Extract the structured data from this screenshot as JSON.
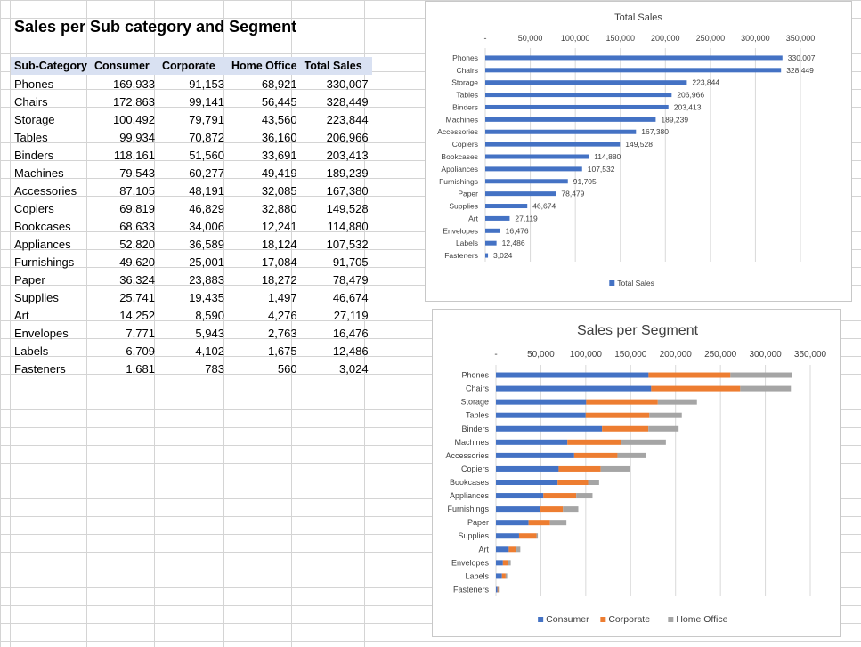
{
  "sheet": {
    "title": "Sales per Sub category and Segment",
    "headers": [
      "Sub-Category",
      "Consumer",
      "Corporate",
      "Home Office",
      "Total Sales"
    ],
    "rows": [
      [
        "Phones",
        "169,933",
        "91,153",
        "68,921",
        "330,007"
      ],
      [
        "Chairs",
        "172,863",
        "99,141",
        "56,445",
        "328,449"
      ],
      [
        "Storage",
        "100,492",
        "79,791",
        "43,560",
        "223,844"
      ],
      [
        "Tables",
        "99,934",
        "70,872",
        "36,160",
        "206,966"
      ],
      [
        "Binders",
        "118,161",
        "51,560",
        "33,691",
        "203,413"
      ],
      [
        "Machines",
        "79,543",
        "60,277",
        "49,419",
        "189,239"
      ],
      [
        "Accessories",
        "87,105",
        "48,191",
        "32,085",
        "167,380"
      ],
      [
        "Copiers",
        "69,819",
        "46,829",
        "32,880",
        "149,528"
      ],
      [
        "Bookcases",
        "68,633",
        "34,006",
        "12,241",
        "114,880"
      ],
      [
        "Appliances",
        "52,820",
        "36,589",
        "18,124",
        "107,532"
      ],
      [
        "Furnishings",
        "49,620",
        "25,001",
        "17,084",
        "91,705"
      ],
      [
        "Paper",
        "36,324",
        "23,883",
        "18,272",
        "78,479"
      ],
      [
        "Supplies",
        "25,741",
        "19,435",
        "1,497",
        "46,674"
      ],
      [
        "Art",
        "14,252",
        "8,590",
        "4,276",
        "27,119"
      ],
      [
        "Envelopes",
        "7,771",
        "5,943",
        "2,763",
        "16,476"
      ],
      [
        "Labels",
        "6,709",
        "4,102",
        "1,675",
        "12,486"
      ],
      [
        "Fasteners",
        "1,681",
        "783",
        "560",
        "3,024"
      ]
    ]
  },
  "chart_data": [
    {
      "type": "bar",
      "orientation": "horizontal",
      "title": "Total Sales",
      "categories": [
        "Phones",
        "Chairs",
        "Storage",
        "Tables",
        "Binders",
        "Machines",
        "Accessories",
        "Copiers",
        "Bookcases",
        "Appliances",
        "Furnishings",
        "Paper",
        "Supplies",
        "Art",
        "Envelopes",
        "Labels",
        "Fasteners"
      ],
      "series": [
        {
          "name": "Total Sales",
          "color": "#4472c4",
          "values": [
            330007,
            328449,
            223844,
            206966,
            203413,
            189239,
            167380,
            149528,
            114880,
            107532,
            91705,
            78479,
            46674,
            27119,
            16476,
            12486,
            3024
          ]
        }
      ],
      "data_labels": [
        "330,007",
        "328,449",
        "223,844",
        "206,966",
        "203,413",
        "189,239",
        "167,380",
        "149,528",
        "114,880",
        "107,532",
        "91,705",
        "78,479",
        "46,674",
        "27,119",
        "16,476",
        "12,486",
        "3,024"
      ],
      "xlim": [
        0,
        350000
      ],
      "ticks": [
        0,
        50000,
        100000,
        150000,
        200000,
        250000,
        300000,
        350000
      ],
      "tick_labels": [
        "-",
        "50,000",
        "100,000",
        "150,000",
        "200,000",
        "250,000",
        "300,000",
        "350,000"
      ],
      "axis_position": "top",
      "grid": true,
      "legend": "bottom"
    },
    {
      "type": "bar",
      "orientation": "horizontal",
      "stacked": true,
      "title": "Sales per Segment",
      "categories": [
        "Phones",
        "Chairs",
        "Storage",
        "Tables",
        "Binders",
        "Machines",
        "Accessories",
        "Copiers",
        "Bookcases",
        "Appliances",
        "Furnishings",
        "Paper",
        "Supplies",
        "Art",
        "Envelopes",
        "Labels",
        "Fasteners"
      ],
      "series": [
        {
          "name": "Consumer",
          "color": "#4472c4",
          "values": [
            169933,
            172863,
            100492,
            99934,
            118161,
            79543,
            87105,
            69819,
            68633,
            52820,
            49620,
            36324,
            25741,
            14252,
            7771,
            6709,
            1681
          ]
        },
        {
          "name": "Corporate",
          "color": "#ed7d31",
          "values": [
            91153,
            99141,
            79791,
            70872,
            51560,
            60277,
            48191,
            46829,
            34006,
            36589,
            25001,
            23883,
            19435,
            8590,
            5943,
            4102,
            783
          ]
        },
        {
          "name": "Home Office",
          "color": "#a5a5a5",
          "values": [
            68921,
            56445,
            43560,
            36160,
            33691,
            49419,
            32085,
            32880,
            12241,
            18124,
            17084,
            18272,
            1497,
            4276,
            2763,
            1675,
            560
          ]
        }
      ],
      "xlim": [
        0,
        350000
      ],
      "ticks": [
        0,
        50000,
        100000,
        150000,
        200000,
        250000,
        300000,
        350000
      ],
      "tick_labels": [
        "-",
        "50,000",
        "100,000",
        "150,000",
        "200,000",
        "250,000",
        "300,000",
        "350,000"
      ],
      "axis_position": "top",
      "grid": true,
      "legend": "bottom"
    }
  ]
}
